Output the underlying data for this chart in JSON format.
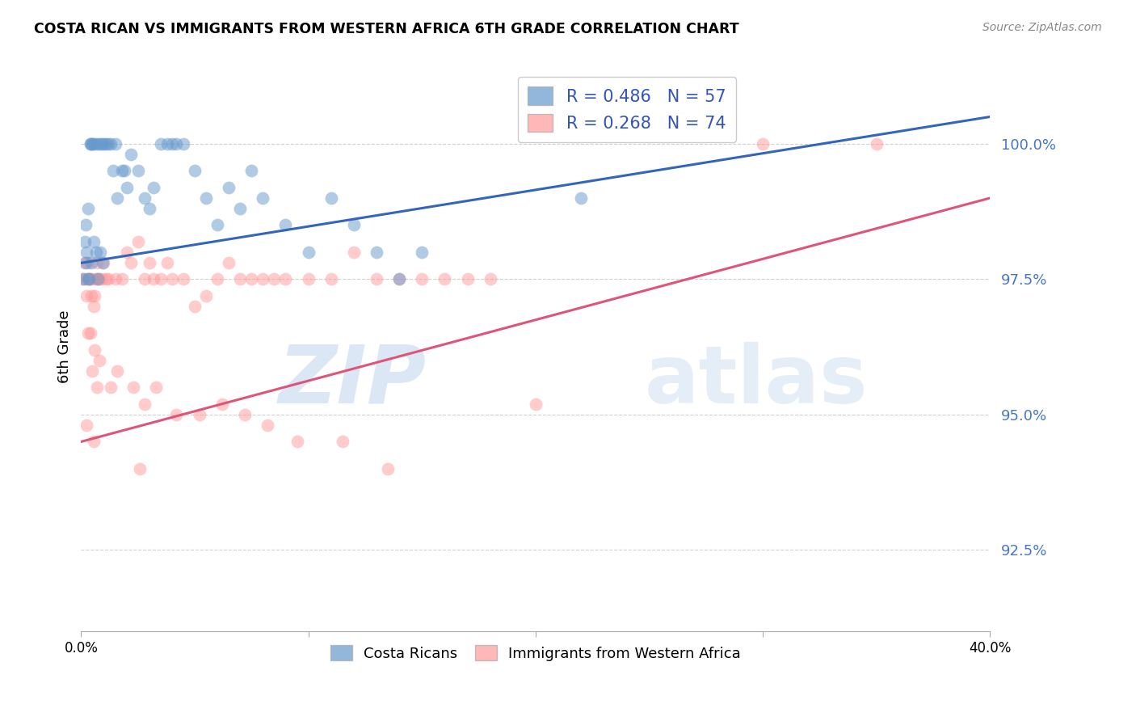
{
  "title": "COSTA RICAN VS IMMIGRANTS FROM WESTERN AFRICA 6TH GRADE CORRELATION CHART",
  "source": "Source: ZipAtlas.com",
  "ylabel": "6th Grade",
  "y_ticks": [
    92.5,
    95.0,
    97.5,
    100.0
  ],
  "y_tick_labels": [
    "92.5%",
    "95.0%",
    "97.5%",
    "100.0%"
  ],
  "xmin": 0.0,
  "xmax": 40.0,
  "ymin": 91.0,
  "ymax": 101.5,
  "blue_R": 0.486,
  "blue_N": 57,
  "pink_R": 0.268,
  "pink_N": 74,
  "legend_blue": "Costa Ricans",
  "legend_pink": "Immigrants from Western Africa",
  "blue_color": "#6699CC",
  "pink_color": "#FF9999",
  "blue_line_color": "#3366BB",
  "pink_line_color": "#DD5577",
  "blue_scatter_x": [
    0.1,
    0.15,
    0.2,
    0.2,
    0.25,
    0.3,
    0.3,
    0.4,
    0.4,
    0.5,
    0.5,
    0.6,
    0.7,
    0.8,
    0.9,
    1.0,
    1.1,
    1.2,
    1.3,
    1.5,
    1.8,
    2.0,
    2.2,
    2.5,
    2.8,
    3.0,
    3.2,
    3.5,
    3.8,
    4.0,
    4.2,
    4.5,
    5.0,
    5.5,
    6.0,
    6.5,
    7.0,
    7.5,
    8.0,
    9.0,
    10.0,
    11.0,
    12.0,
    13.0,
    14.0,
    15.0,
    0.35,
    0.45,
    0.55,
    0.65,
    0.75,
    0.85,
    0.95,
    1.4,
    1.6,
    1.9,
    22.0
  ],
  "blue_scatter_y": [
    97.5,
    98.2,
    97.8,
    98.5,
    98.0,
    97.5,
    98.8,
    100.0,
    100.0,
    100.0,
    100.0,
    100.0,
    100.0,
    100.0,
    100.0,
    100.0,
    100.0,
    100.0,
    100.0,
    100.0,
    99.5,
    99.2,
    99.8,
    99.5,
    99.0,
    98.8,
    99.2,
    100.0,
    100.0,
    100.0,
    100.0,
    100.0,
    99.5,
    99.0,
    98.5,
    99.2,
    98.8,
    99.5,
    99.0,
    98.5,
    98.0,
    99.0,
    98.5,
    98.0,
    97.5,
    98.0,
    97.5,
    97.8,
    98.2,
    98.0,
    97.5,
    98.0,
    97.8,
    99.5,
    99.0,
    99.5,
    99.0
  ],
  "pink_scatter_x": [
    0.1,
    0.15,
    0.2,
    0.25,
    0.3,
    0.35,
    0.4,
    0.45,
    0.5,
    0.55,
    0.6,
    0.65,
    0.7,
    0.75,
    0.8,
    0.9,
    1.0,
    1.1,
    1.2,
    1.5,
    1.8,
    2.0,
    2.2,
    2.5,
    2.8,
    3.0,
    3.2,
    3.5,
    3.8,
    4.0,
    4.5,
    5.0,
    5.5,
    6.0,
    6.5,
    7.0,
    7.5,
    8.0,
    8.5,
    9.0,
    10.0,
    11.0,
    12.0,
    13.0,
    14.0,
    15.0,
    16.0,
    17.0,
    18.0,
    20.0,
    0.3,
    0.4,
    0.5,
    0.6,
    0.7,
    0.8,
    1.3,
    1.6,
    2.3,
    2.8,
    3.3,
    4.2,
    5.2,
    6.2,
    7.2,
    8.2,
    9.5,
    11.5,
    13.5,
    0.25,
    0.55,
    2.6,
    30.0,
    35.0
  ],
  "pink_scatter_y": [
    97.5,
    97.8,
    97.5,
    97.2,
    97.8,
    97.5,
    97.5,
    97.2,
    97.5,
    97.0,
    97.2,
    97.5,
    97.8,
    97.5,
    97.5,
    97.5,
    97.8,
    97.5,
    97.5,
    97.5,
    97.5,
    98.0,
    97.8,
    98.2,
    97.5,
    97.8,
    97.5,
    97.5,
    97.8,
    97.5,
    97.5,
    97.0,
    97.2,
    97.5,
    97.8,
    97.5,
    97.5,
    97.5,
    97.5,
    97.5,
    97.5,
    97.5,
    98.0,
    97.5,
    97.5,
    97.5,
    97.5,
    97.5,
    97.5,
    95.2,
    96.5,
    96.5,
    95.8,
    96.2,
    95.5,
    96.0,
    95.5,
    95.8,
    95.5,
    95.2,
    95.5,
    95.0,
    95.0,
    95.2,
    95.0,
    94.8,
    94.5,
    94.5,
    94.0,
    94.8,
    94.5,
    94.0,
    100.0,
    100.0
  ],
  "blue_line_x0": 0.0,
  "blue_line_x1": 40.0,
  "blue_line_y0": 97.8,
  "blue_line_y1": 100.5,
  "pink_line_x0": 0.0,
  "pink_line_x1": 40.0,
  "pink_line_y0": 94.5,
  "pink_line_y1": 99.0
}
